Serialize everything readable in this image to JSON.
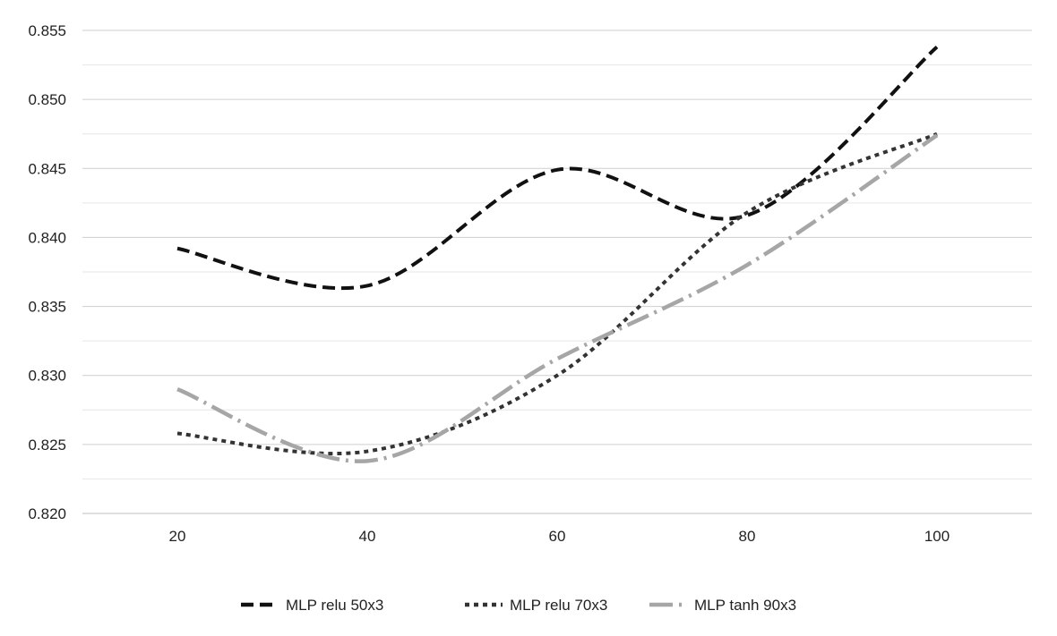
{
  "chart_data": {
    "type": "line",
    "title": "",
    "xlabel": "",
    "ylabel": "",
    "x": [
      20,
      40,
      60,
      80,
      100
    ],
    "x_ticks": [
      "20",
      "40",
      "60",
      "80",
      "100"
    ],
    "xlim": [
      10,
      110
    ],
    "ylim": [
      0.82,
      0.855
    ],
    "y_ticks": [
      "0.820",
      "0.825",
      "0.830",
      "0.835",
      "0.840",
      "0.845",
      "0.850",
      "0.855"
    ],
    "grid": true,
    "minor_grid": true,
    "legend_position": "bottom",
    "series": [
      {
        "name": "MLP relu 50x3",
        "values": [
          0.8392,
          0.8365,
          0.8449,
          0.8416,
          0.8538
        ],
        "color": "#111111",
        "dash": "dashed"
      },
      {
        "name": "MLP relu 70x3",
        "values": [
          0.8258,
          0.8245,
          0.83,
          0.8418,
          0.8475
        ],
        "color": "#333333",
        "dash": "dotted"
      },
      {
        "name": "MLP tanh 90x3",
        "values": [
          0.829,
          0.8238,
          0.8312,
          0.838,
          0.8474
        ],
        "color": "#a6a6a6",
        "dash": "dashdot"
      }
    ]
  }
}
